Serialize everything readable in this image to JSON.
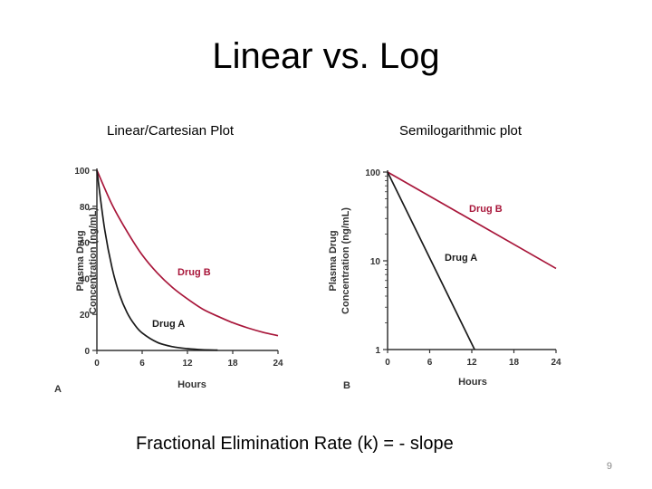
{
  "slide": {
    "title": "Linear vs. Log",
    "subtitle_left": "Linear/Cartesian Plot",
    "subtitle_right": "Semilogarithmic plot",
    "footer": "Fractional Elimination Rate (k) = - slope",
    "page_number": "9"
  },
  "colors": {
    "drug_a": "#1a1a1a",
    "drug_b": "#a8163a",
    "axis": "#333333"
  },
  "chart_data": [
    {
      "type": "line",
      "panel": "A",
      "title": "",
      "xlabel": "Hours",
      "ylabel_line1": "Plasma Drug",
      "ylabel_line2": "Concentration (ng/mL)",
      "xlim": [
        0,
        24
      ],
      "ylim": [
        0,
        100
      ],
      "x_ticks": [
        "0",
        "6",
        "12",
        "18",
        "24"
      ],
      "y_ticks": [
        "0",
        "20",
        "40",
        "60",
        "80",
        "100"
      ],
      "series": [
        {
          "name": "Drug B",
          "x": [
            0,
            2,
            4,
            6,
            8,
            10,
            12,
            14,
            16,
            18,
            20,
            22,
            24
          ],
          "values": [
            100,
            81,
            66,
            53,
            43,
            35,
            28.6,
            23,
            19,
            15.4,
            12.5,
            10.1,
            8.2
          ]
        },
        {
          "name": "Drug A",
          "x": [
            0,
            1,
            2,
            3,
            4,
            5,
            6,
            8,
            10,
            12,
            14,
            16
          ],
          "values": [
            100,
            68,
            46,
            31,
            21,
            14.3,
            9.7,
            4.5,
            2.1,
            1.0,
            0.4,
            0.2
          ]
        }
      ]
    },
    {
      "type": "line",
      "panel": "B",
      "title": "",
      "xlabel": "Hours",
      "ylabel_line1": "Plasma Drug",
      "ylabel_line2": "Concentration (ng/mL)",
      "xlim": [
        0,
        24
      ],
      "ylim": [
        1,
        100
      ],
      "yscale": "log",
      "x_ticks": [
        "0",
        "6",
        "12",
        "18",
        "24"
      ],
      "y_ticks": [
        "1",
        "10",
        "100"
      ],
      "series": [
        {
          "name": "Drug B",
          "x": [
            0,
            24
          ],
          "values": [
            100,
            8.2
          ]
        },
        {
          "name": "Drug A",
          "x": [
            0,
            12.4
          ],
          "values": [
            100,
            1
          ]
        }
      ]
    }
  ]
}
